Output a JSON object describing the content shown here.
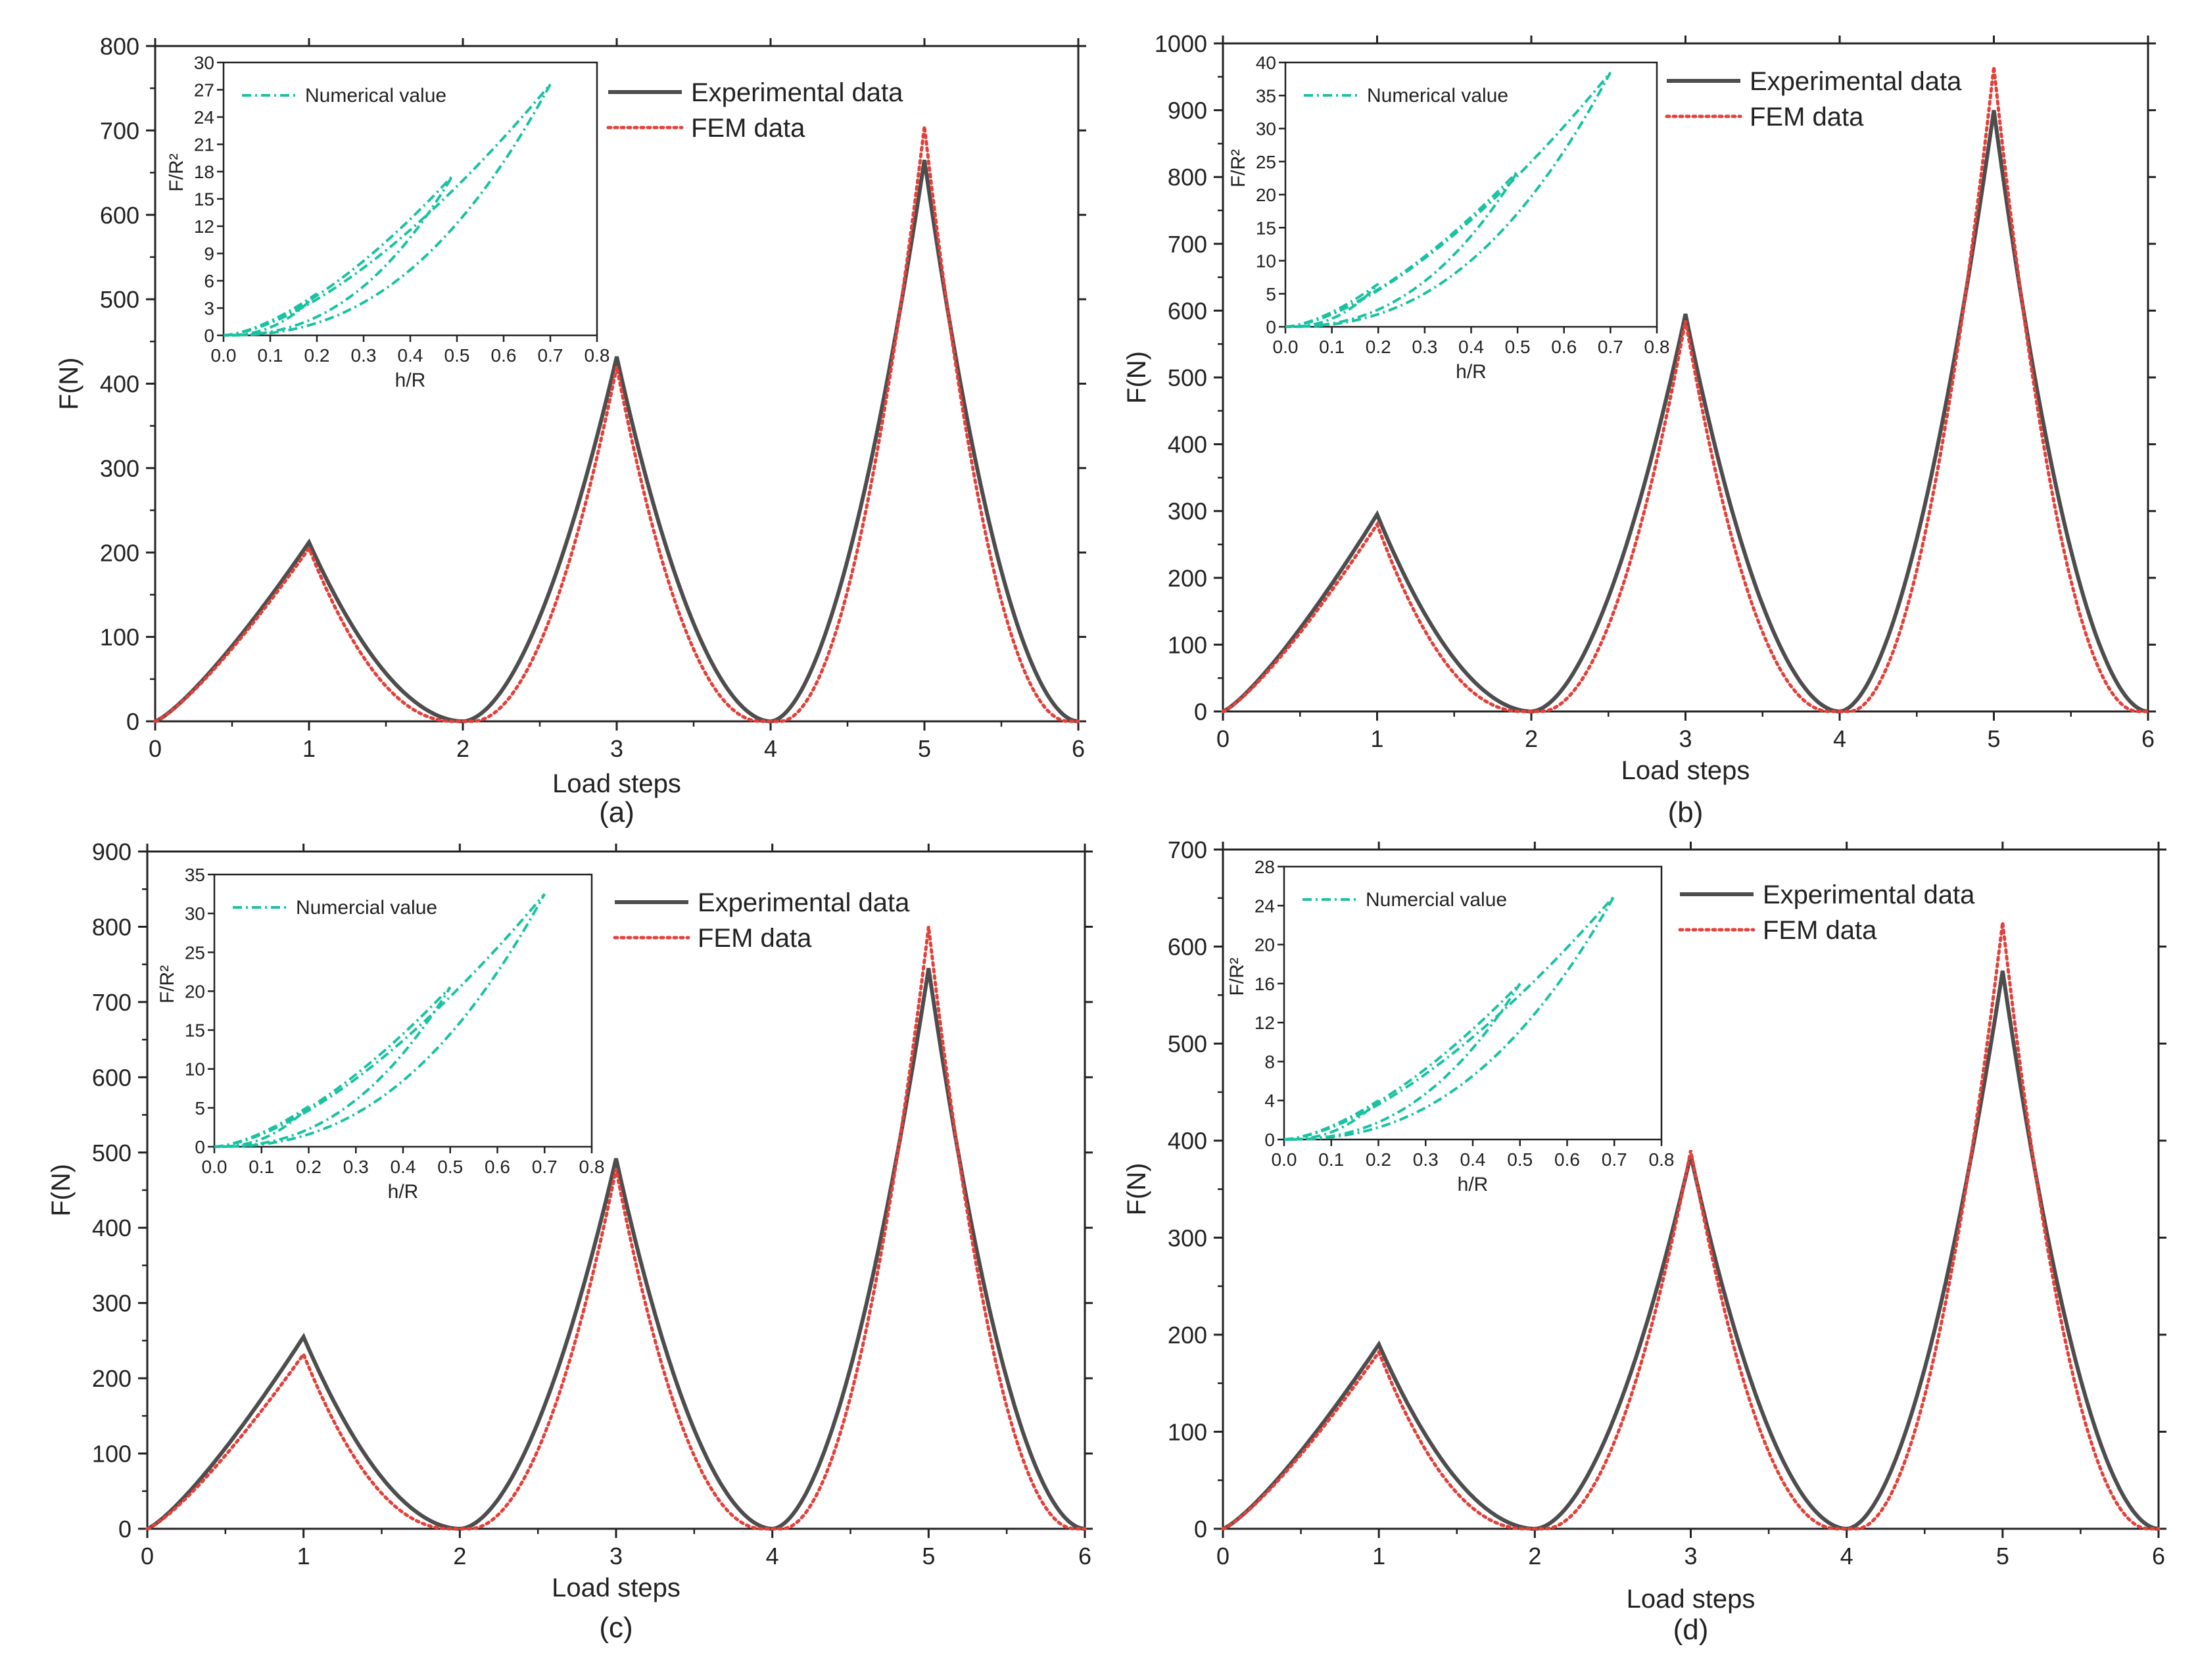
{
  "figure": {
    "colors": {
      "experimental": "#4d4d4d",
      "fem": "#e3403a",
      "numerical": "#19c2a2",
      "axis": "#222222"
    }
  },
  "chart_data": [
    {
      "panel": "(a)",
      "type": "line",
      "xlabel": "Load steps",
      "ylabel": "F(N)",
      "xlim": [
        0,
        6
      ],
      "ylim": [
        0,
        800
      ],
      "xticks": [
        0,
        1,
        2,
        3,
        4,
        5,
        6
      ],
      "yticks": [
        0,
        100,
        200,
        300,
        400,
        500,
        600,
        700,
        800
      ],
      "legend_position": "top-right",
      "series": [
        {
          "name": "Experimental data",
          "style": "solid",
          "peaks": [
            {
              "x": 1,
              "y": 212
            },
            {
              "x": 3,
              "y": 432
            },
            {
              "x": 5,
              "y": 665
            }
          ],
          "zeros": [
            0,
            2,
            4,
            6
          ]
        },
        {
          "name": "FEM data",
          "style": "dotted",
          "peaks": [
            {
              "x": 1,
              "y": 205
            },
            {
              "x": 3,
              "y": 420
            },
            {
              "x": 5,
              "y": 705
            }
          ],
          "zeros": [
            0,
            2,
            4,
            6
          ]
        }
      ],
      "inset": {
        "xlabel": "h/R",
        "ylabel": "F/R²",
        "xlim": [
          0,
          0.8
        ],
        "ylim": [
          0,
          30
        ],
        "xticks": [
          "0.0",
          "0.1",
          "0.2",
          "0.3",
          "0.4",
          "0.5",
          "0.6",
          "0.7",
          "0.8"
        ],
        "yticks": [
          0,
          3,
          6,
          9,
          12,
          15,
          18,
          21,
          24,
          27,
          30
        ],
        "legend_label": "Numerical value",
        "loops": [
          {
            "h_max": 0.2,
            "f_max": 4.6
          },
          {
            "h_max": 0.49,
            "f_max": 17.5
          },
          {
            "h_max": 0.7,
            "f_max": 27.6
          }
        ]
      }
    },
    {
      "panel": "(b)",
      "type": "line",
      "xlabel": "Load steps",
      "ylabel": "F(N)",
      "xlim": [
        0,
        6
      ],
      "ylim": [
        0,
        1000
      ],
      "xticks": [
        0,
        1,
        2,
        3,
        4,
        5,
        6
      ],
      "yticks": [
        0,
        100,
        200,
        300,
        400,
        500,
        600,
        700,
        800,
        900,
        1000
      ],
      "legend_position": "top-right",
      "series": [
        {
          "name": "Experimental data",
          "style": "solid",
          "peaks": [
            {
              "x": 1,
              "y": 295
            },
            {
              "x": 3,
              "y": 595
            },
            {
              "x": 5,
              "y": 900
            }
          ],
          "zeros": [
            0,
            2,
            4,
            6
          ]
        },
        {
          "name": "FEM data",
          "style": "dotted",
          "peaks": [
            {
              "x": 1,
              "y": 280
            },
            {
              "x": 3,
              "y": 585
            },
            {
              "x": 5,
              "y": 965
            }
          ],
          "zeros": [
            0,
            2,
            4,
            6
          ]
        }
      ],
      "inset": {
        "xlabel": "h/R",
        "ylabel": "F/R²",
        "xlim": [
          0,
          0.8
        ],
        "ylim": [
          0,
          40
        ],
        "xticks": [
          "0.0",
          "0.1",
          "0.2",
          "0.3",
          "0.4",
          "0.5",
          "0.6",
          "0.7",
          "0.8"
        ],
        "yticks": [
          0,
          5,
          10,
          15,
          20,
          25,
          30,
          35,
          40
        ],
        "legend_label": "Numerical value",
        "loops": [
          {
            "h_max": 0.2,
            "f_max": 6.5
          },
          {
            "h_max": 0.5,
            "f_max": 23.5
          },
          {
            "h_max": 0.7,
            "f_max": 38.5
          }
        ]
      }
    },
    {
      "panel": "(c)",
      "type": "line",
      "xlabel": "Load steps",
      "ylabel": "F(N)",
      "xlim": [
        0,
        6
      ],
      "ylim": [
        0,
        900
      ],
      "xticks": [
        0,
        1,
        2,
        3,
        4,
        5,
        6
      ],
      "yticks": [
        0,
        100,
        200,
        300,
        400,
        500,
        600,
        700,
        800,
        900
      ],
      "legend_position": "top-right",
      "series": [
        {
          "name": "Experimental data",
          "style": "solid",
          "peaks": [
            {
              "x": 1,
              "y": 255
            },
            {
              "x": 3,
              "y": 492
            },
            {
              "x": 5,
              "y": 745
            }
          ],
          "zeros": [
            0,
            2,
            4,
            6
          ]
        },
        {
          "name": "FEM data",
          "style": "dotted",
          "peaks": [
            {
              "x": 1,
              "y": 232
            },
            {
              "x": 3,
              "y": 478
            },
            {
              "x": 5,
              "y": 800
            }
          ],
          "zeros": [
            0,
            2,
            4,
            6
          ]
        }
      ],
      "inset": {
        "xlabel": "h/R",
        "ylabel": "F/R²",
        "xlim": [
          0,
          0.8
        ],
        "ylim": [
          0,
          35
        ],
        "xticks": [
          "0.0",
          "0.1",
          "0.2",
          "0.3",
          "0.4",
          "0.5",
          "0.6",
          "0.7",
          "0.8"
        ],
        "yticks": [
          0,
          5,
          10,
          15,
          20,
          25,
          30,
          35
        ],
        "legend_label": "Numercial value",
        "loops": [
          {
            "h_max": 0.2,
            "f_max": 5.2
          },
          {
            "h_max": 0.5,
            "f_max": 20.5
          },
          {
            "h_max": 0.7,
            "f_max": 32.5
          }
        ]
      }
    },
    {
      "panel": "(d)",
      "type": "line",
      "xlabel": "Load steps",
      "ylabel": "F(N)",
      "xlim": [
        0,
        6
      ],
      "ylim": [
        0,
        700
      ],
      "xticks": [
        0,
        1,
        2,
        3,
        4,
        5,
        6
      ],
      "yticks": [
        0,
        100,
        200,
        300,
        400,
        500,
        600,
        700
      ],
      "legend_position": "top-right",
      "series": [
        {
          "name": "Experimental data",
          "style": "solid",
          "peaks": [
            {
              "x": 1,
              "y": 190
            },
            {
              "x": 3,
              "y": 385
            },
            {
              "x": 5,
              "y": 575
            }
          ],
          "zeros": [
            0,
            2,
            4,
            6
          ]
        },
        {
          "name": "FEM data",
          "style": "dotted",
          "peaks": [
            {
              "x": 1,
              "y": 182
            },
            {
              "x": 3,
              "y": 390
            },
            {
              "x": 5,
              "y": 625
            }
          ],
          "zeros": [
            0,
            2,
            4,
            6
          ]
        }
      ],
      "inset": {
        "xlabel": "h/R",
        "ylabel": "F/R²",
        "xlim": [
          0,
          0.8
        ],
        "ylim": [
          0,
          28
        ],
        "xticks": [
          "0.0",
          "0.1",
          "0.2",
          "0.3",
          "0.4",
          "0.5",
          "0.6",
          "0.7",
          "0.8"
        ],
        "yticks": [
          0,
          4,
          8,
          12,
          16,
          20,
          24,
          28
        ],
        "legend_label": "Numercial value",
        "loops": [
          {
            "h_max": 0.2,
            "f_max": 4.0
          },
          {
            "h_max": 0.5,
            "f_max": 16.0
          },
          {
            "h_max": 0.7,
            "f_max": 25.0
          }
        ]
      }
    }
  ]
}
